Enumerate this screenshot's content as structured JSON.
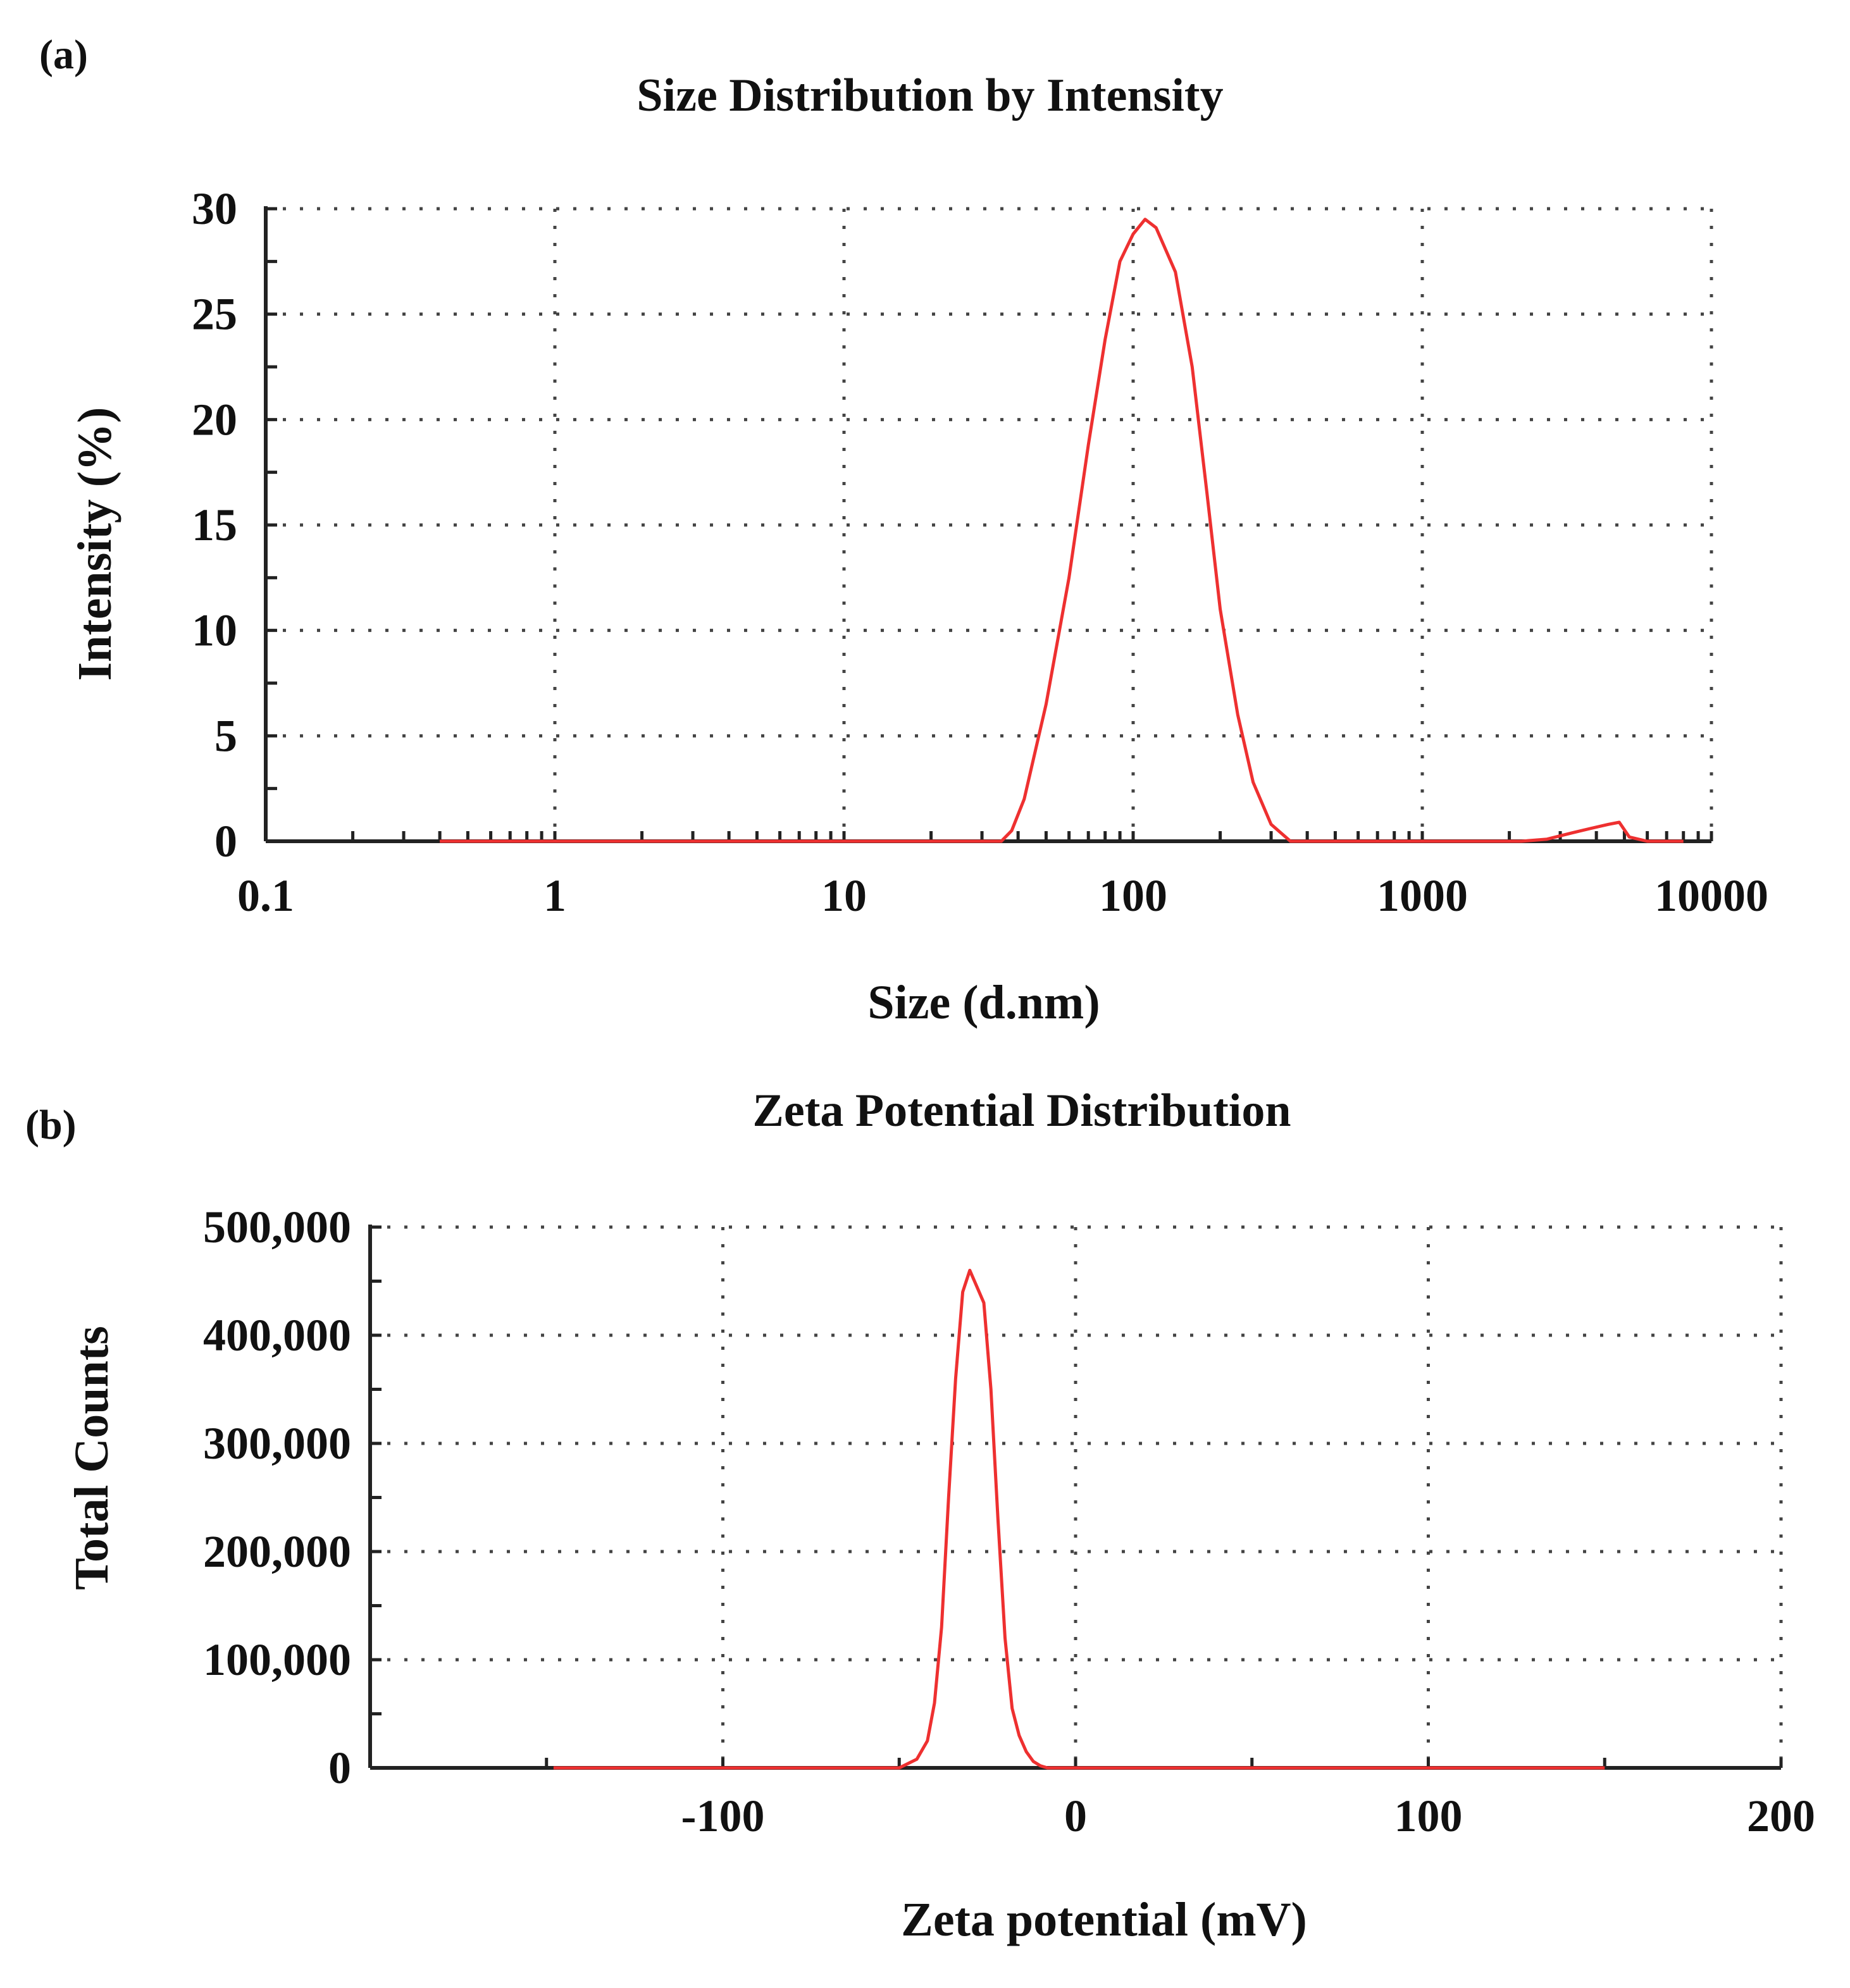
{
  "chart_data": [
    {
      "panel": "(a)",
      "type": "line",
      "title": "Size Distribution by Intensity",
      "xlabel": "Size (d.nm)",
      "ylabel": "Intensity (%)",
      "xscale": "log",
      "xlim": [
        0.1,
        10000
      ],
      "ylim": [
        0,
        30
      ],
      "xticks": [
        0.1,
        1,
        10,
        100,
        1000,
        10000
      ],
      "xtick_labels": [
        "0.1",
        "1",
        "10",
        "100",
        "1000",
        "10000"
      ],
      "yticks": [
        0,
        5,
        10,
        15,
        20,
        25,
        30
      ],
      "ytick_labels": [
        "0",
        "5",
        "10",
        "15",
        "20",
        "25",
        "30"
      ],
      "grid": true,
      "color": "#ee3030",
      "series": [
        {
          "name": "Intensity",
          "x": [
            0.4,
            1,
            10,
            35,
            38,
            42,
            50,
            60,
            70,
            80,
            90,
            100,
            110,
            120,
            140,
            160,
            180,
            200,
            230,
            260,
            300,
            350,
            1000,
            2200,
            2700,
            3300,
            3800,
            4400,
            4800,
            5200,
            6000,
            8000
          ],
          "y": [
            0,
            0,
            0,
            0,
            0.5,
            2.0,
            6.5,
            12.5,
            18.8,
            23.8,
            27.5,
            28.8,
            29.5,
            29.1,
            27.0,
            22.5,
            16.5,
            11.0,
            6.0,
            2.8,
            0.8,
            0,
            0,
            0,
            0.1,
            0.4,
            0.6,
            0.8,
            0.9,
            0.2,
            0,
            0
          ]
        }
      ]
    },
    {
      "panel": "(b)",
      "type": "line",
      "title": "Zeta Potential Distribution",
      "xlabel": "Zeta potential (mV)",
      "ylabel": "Total Counts",
      "xlim": [
        -200,
        200
      ],
      "ylim": [
        0,
        500000
      ],
      "xticks": [
        -100,
        0,
        100,
        200
      ],
      "xtick_labels": [
        "-100",
        "0",
        "100",
        "200"
      ],
      "yticks": [
        0,
        100000,
        200000,
        300000,
        400000,
        500000
      ],
      "ytick_labels": [
        "0",
        "100,000",
        "200,000",
        "300,000",
        "400,000",
        "500,000"
      ],
      "grid": true,
      "color": "#ee3030",
      "series": [
        {
          "name": "Total Counts",
          "x": [
            -148,
            -80,
            -50,
            -45,
            -42,
            -40,
            -38,
            -36,
            -34,
            -32,
            -30,
            -28,
            -26,
            -24,
            -22,
            -20,
            -18,
            -16,
            -14,
            -12,
            -10,
            -8,
            -5,
            150
          ],
          "y": [
            0,
            0,
            0,
            8000,
            25000,
            60000,
            130000,
            250000,
            360000,
            440000,
            460000,
            445000,
            430000,
            350000,
            230000,
            120000,
            55000,
            30000,
            15000,
            6000,
            2000,
            0,
            0,
            0
          ]
        }
      ]
    }
  ]
}
